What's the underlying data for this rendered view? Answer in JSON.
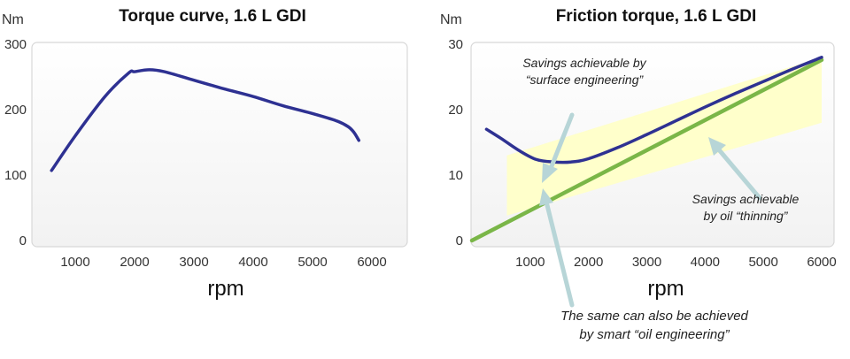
{
  "chart_data": [
    {
      "type": "line",
      "title": "Torque curve, 1.6 L GDI",
      "ylabel": "Nm",
      "xlabel": "rpm",
      "xlim": [
        0,
        6000
      ],
      "ylim": [
        0,
        300
      ],
      "x_ticks": [
        "1000",
        "2000",
        "3000",
        "4000",
        "5000",
        "6000"
      ],
      "y_ticks": [
        "0",
        "100",
        "200",
        "300"
      ],
      "grid": false,
      "series": [
        {
          "color": "#2e3192",
          "x": [
            600,
            1000,
            1500,
            1900,
            2000,
            2250,
            2500,
            3000,
            3500,
            4000,
            4500,
            5000,
            5400,
            5600,
            5700,
            5780
          ],
          "y": [
            107,
            160,
            220,
            256,
            258,
            261,
            258,
            245,
            232,
            220,
            206,
            194,
            183,
            174,
            165,
            153
          ]
        }
      ]
    },
    {
      "type": "line",
      "title": "Friction torque, 1.6 L GDI",
      "ylabel": "Nm",
      "xlabel": "rpm",
      "xlim": [
        0,
        6000
      ],
      "ylim": [
        0,
        30
      ],
      "x_ticks": [
        "1000",
        "2000",
        "3000",
        "4000",
        "5000",
        "6000"
      ],
      "y_ticks": [
        "0",
        "10",
        "20",
        "30"
      ],
      "grid": false,
      "series": [
        {
          "color": "#2e3192",
          "x": [
            250,
            500,
            800,
            1100,
            1400,
            1700,
            2000,
            2500,
            3000,
            3500,
            4000,
            4500,
            5000,
            5500,
            6000
          ],
          "y": [
            17,
            15.6,
            13.8,
            12.4,
            12.0,
            12.0,
            12.5,
            14.2,
            16.2,
            18.3,
            20.4,
            22.4,
            24.3,
            26.2,
            28.0
          ]
        },
        {
          "color": "#7ab648",
          "x": [
            0,
            6000
          ],
          "y": [
            0,
            27.6
          ]
        }
      ],
      "shaded_regions": [
        {
          "color": "#ffffc8",
          "x": [
            600,
            6000,
            6000,
            600
          ],
          "y": [
            13,
            28,
            18,
            3.8
          ]
        }
      ],
      "annotations": [
        {
          "lines": [
            "Savings achievable by",
            "“surface engineering”"
          ]
        },
        {
          "lines": [
            "Savings achievable",
            "by oil “thinning”"
          ]
        },
        {
          "lines": [
            "The same can also be achieved",
            "by smart “oil engineering”"
          ]
        }
      ]
    }
  ]
}
